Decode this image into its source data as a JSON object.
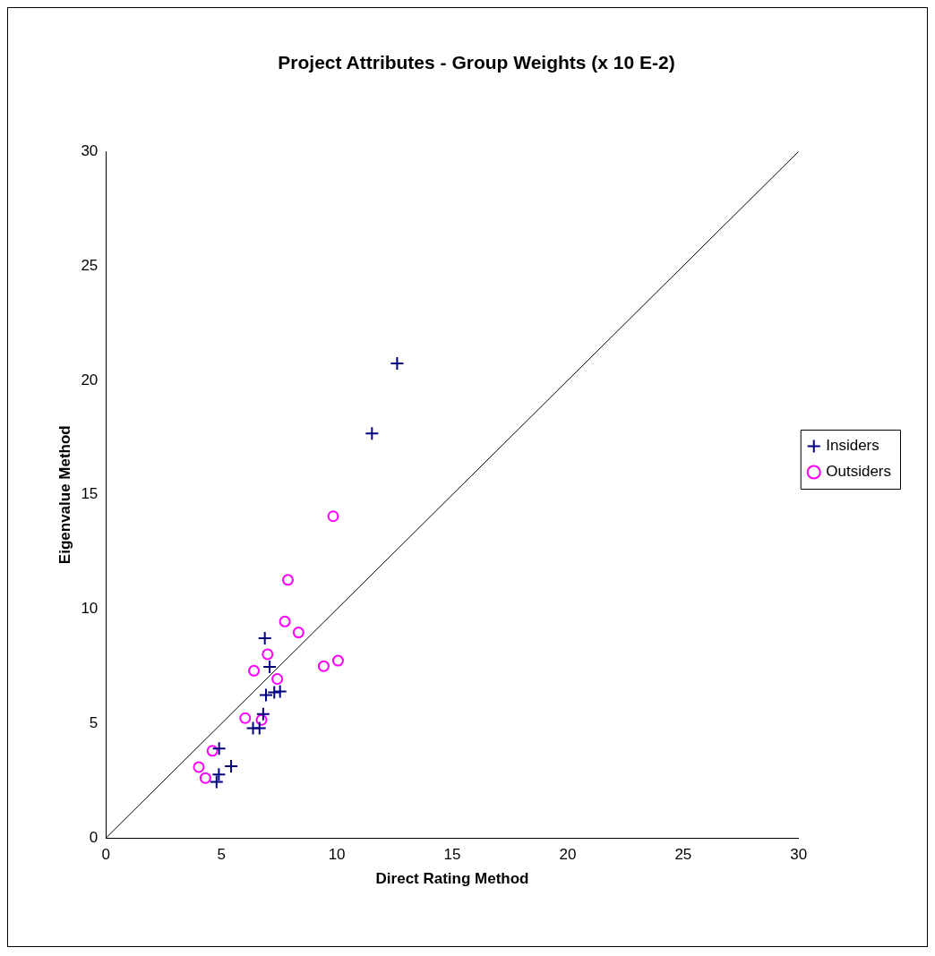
{
  "chart_data": {
    "type": "scatter",
    "title": "Project Attributes - Group Weights (x 10 E-2)",
    "xlabel": "Direct Rating Method",
    "ylabel": "Eigenvalue Method",
    "xlim": [
      0,
      30
    ],
    "ylim": [
      0,
      30
    ],
    "xticks": [
      0,
      5,
      10,
      15,
      20,
      25,
      30
    ],
    "yticks": [
      0,
      5,
      10,
      15,
      20,
      25,
      30
    ],
    "grid": false,
    "legend": "right",
    "series": [
      {
        "name": "Insiders",
        "color": "#000080",
        "marker": "cross",
        "x": [
          12.61,
          11.52,
          6.88,
          7.09,
          6.93,
          7.29,
          7.54,
          6.81,
          6.37,
          6.65,
          4.9,
          5.42,
          4.89,
          4.79
        ],
        "values": [
          20.74,
          17.68,
          8.73,
          7.48,
          6.25,
          6.36,
          6.4,
          5.42,
          4.8,
          4.8,
          3.91,
          3.14,
          2.78,
          2.45
        ]
      },
      {
        "name": "Outsiders",
        "color": "#ff00ff",
        "marker": "circle",
        "x": [
          9.84,
          7.88,
          7.75,
          8.34,
          7.0,
          6.41,
          7.42,
          9.43,
          10.05,
          6.03,
          6.74,
          4.61,
          4.02,
          4.31
        ],
        "values": [
          14.06,
          11.28,
          9.46,
          8.98,
          8.03,
          7.31,
          6.95,
          7.51,
          7.75,
          5.24,
          5.16,
          3.81,
          3.1,
          2.62
        ]
      },
      {
        "type": "line",
        "color": "#000000",
        "marker": "none",
        "line_style": "solid",
        "x": [
          0,
          30
        ],
        "values": [
          0,
          30
        ]
      }
    ]
  }
}
